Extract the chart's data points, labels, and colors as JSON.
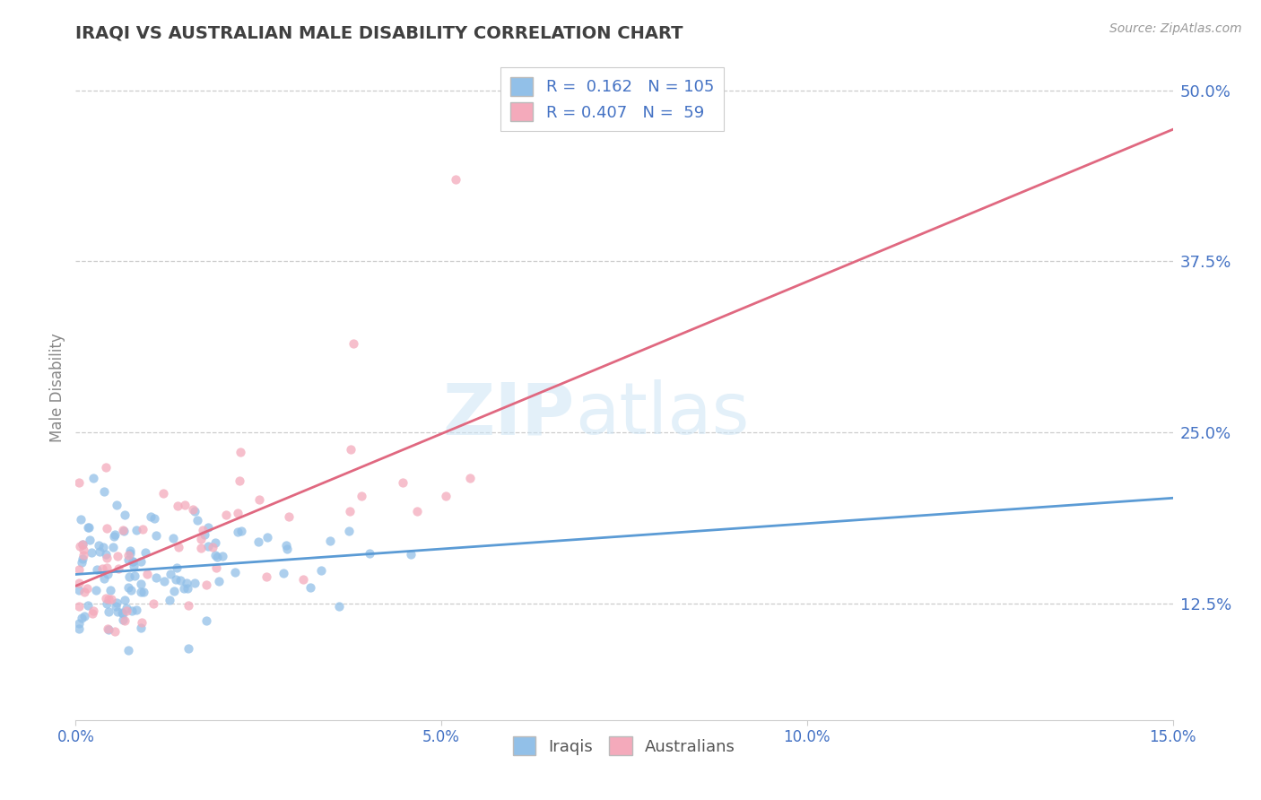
{
  "title": "IRAQI VS AUSTRALIAN MALE DISABILITY CORRELATION CHART",
  "source": "Source: ZipAtlas.com",
  "xlabel_label": "Iraqis",
  "xlabel_label2": "Australians",
  "ylabel": "Male Disability",
  "x_min": 0.0,
  "x_max": 0.15,
  "y_min": 0.04,
  "y_max": 0.525,
  "y_ticks": [
    0.125,
    0.25,
    0.375,
    0.5
  ],
  "y_tick_labels": [
    "12.5%",
    "25.0%",
    "37.5%",
    "50.0%"
  ],
  "x_ticks": [
    0.0,
    0.05,
    0.1,
    0.15
  ],
  "x_tick_labels": [
    "0.0%",
    "5.0%",
    "10.0%",
    "15.0%"
  ],
  "iraqis_color": "#92C0E8",
  "australians_color": "#F4AABB",
  "iraqis_line_color": "#5B9BD5",
  "australians_line_color": "#E06880",
  "R_iraqis": 0.162,
  "N_iraqis": 105,
  "R_australians": 0.407,
  "N_australians": 59,
  "watermark_zip": "ZIP",
  "watermark_atlas": "atlas",
  "background_color": "#ffffff",
  "grid_color": "#cccccc",
  "axis_color": "#4472C4",
  "title_color": "#404040",
  "legend_label_color": "#4472C4",
  "ylabel_color": "#888888"
}
